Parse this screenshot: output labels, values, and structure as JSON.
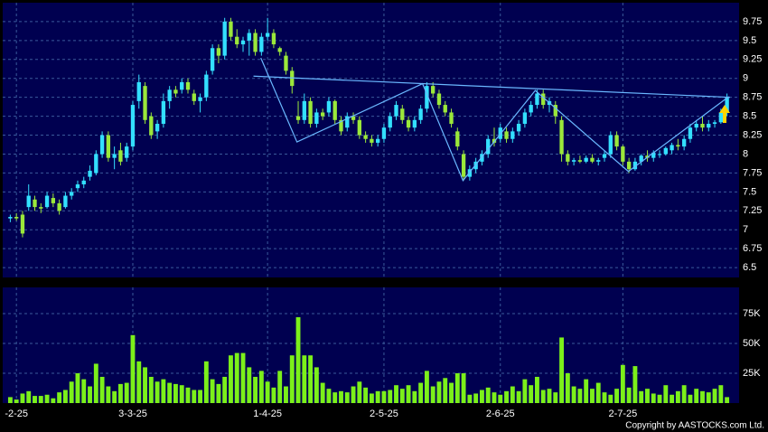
{
  "chart_data": {
    "type": "candlestick",
    "categories": [
      null,
      "-2-25",
      null,
      null,
      null,
      null,
      null,
      null,
      null,
      null,
      null,
      null,
      null,
      null,
      null,
      null,
      null,
      null,
      null,
      null,
      "3-3-25",
      null,
      null,
      null,
      null,
      null,
      null,
      null,
      null,
      null,
      null,
      null,
      null,
      null,
      null,
      null,
      null,
      null,
      null,
      null,
      null,
      null,
      "1-4-25",
      null,
      null,
      null,
      null,
      null,
      null,
      null,
      null,
      null,
      null,
      null,
      null,
      null,
      null,
      null,
      null,
      null,
      null,
      "2-5-25",
      null,
      null,
      null,
      null,
      null,
      null,
      null,
      null,
      null,
      null,
      null,
      null,
      null,
      null,
      null,
      null,
      null,
      null,
      "2-6-25",
      null,
      null,
      null,
      null,
      null,
      null,
      null,
      null,
      null,
      null,
      null,
      null,
      null,
      null,
      null,
      null,
      null,
      null,
      null,
      "2-7-25",
      null,
      null,
      null,
      null,
      null,
      null,
      null,
      null,
      null,
      null,
      null,
      null,
      null,
      null,
      null,
      null,
      null
    ],
    "open": [
      7.15,
      7.17,
      7.2,
      7.3,
      7.4,
      7.3,
      7.3,
      7.42,
      7.35,
      7.3,
      7.45,
      7.55,
      7.6,
      7.7,
      7.75,
      8.0,
      8.25,
      7.95,
      8.05,
      7.95,
      8.1,
      8.7,
      8.9,
      8.5,
      8.3,
      8.4,
      8.7,
      8.85,
      8.85,
      8.95,
      8.8,
      8.7,
      8.75,
      9.1,
      9.4,
      9.3,
      9.75,
      9.55,
      9.45,
      9.5,
      9.6,
      9.35,
      9.55,
      9.6,
      9.4,
      9.3,
      9.1,
      8.5,
      8.45,
      8.7,
      8.4,
      8.55,
      8.55,
      8.7,
      8.45,
      8.35,
      8.5,
      8.45,
      8.25,
      8.2,
      8.15,
      8.2,
      8.35,
      8.5,
      8.6,
      8.45,
      8.35,
      8.45,
      8.6,
      8.9,
      8.8,
      8.65,
      8.55,
      8.3,
      8.0,
      7.7,
      7.8,
      7.9,
      8.0,
      8.2,
      8.2,
      8.3,
      8.2,
      8.3,
      8.4,
      8.55,
      8.65,
      8.8,
      8.65,
      8.65,
      8.45,
      8.0,
      7.9,
      7.92,
      7.9,
      7.95,
      7.9,
      7.95,
      8.0,
      8.25,
      8.1,
      7.9,
      7.8,
      7.9,
      7.98,
      7.95,
      8.0,
      8.0,
      8.05,
      8.12,
      8.1,
      8.2,
      8.35,
      8.4,
      8.35,
      8.4,
      8.42,
      8.55
    ],
    "high": [
      7.2,
      7.22,
      7.25,
      7.6,
      7.45,
      7.35,
      7.5,
      7.48,
      7.4,
      7.5,
      7.55,
      7.65,
      7.7,
      7.85,
      8.05,
      8.3,
      8.3,
      8.1,
      8.15,
      8.15,
      8.7,
      9.05,
      8.95,
      8.55,
      8.45,
      8.8,
      8.9,
      8.9,
      9.0,
      9.0,
      8.85,
      8.8,
      9.1,
      9.45,
      9.45,
      9.8,
      9.8,
      9.65,
      9.55,
      9.65,
      9.65,
      9.6,
      9.8,
      9.65,
      9.42,
      9.35,
      9.15,
      8.7,
      8.8,
      8.75,
      8.6,
      8.6,
      8.75,
      8.72,
      8.5,
      8.55,
      8.55,
      8.5,
      8.3,
      8.25,
      8.25,
      8.4,
      8.55,
      8.7,
      8.65,
      8.5,
      8.5,
      8.65,
      8.95,
      8.95,
      8.85,
      8.7,
      8.6,
      8.35,
      8.05,
      7.85,
      7.95,
      8.05,
      8.25,
      8.35,
      8.4,
      8.35,
      8.35,
      8.45,
      8.6,
      8.7,
      8.85,
      8.85,
      8.75,
      8.7,
      8.5,
      8.05,
      7.95,
      7.98,
      7.98,
      8.0,
      7.95,
      8.05,
      8.3,
      8.3,
      8.12,
      7.95,
      7.95,
      8.0,
      8.05,
      8.05,
      8.05,
      8.1,
      8.15,
      8.2,
      8.25,
      8.4,
      8.45,
      8.5,
      8.45,
      8.45,
      8.6,
      8.8
    ],
    "low": [
      7.1,
      7.12,
      6.9,
      7.25,
      7.25,
      7.22,
      7.28,
      7.3,
      7.2,
      7.28,
      7.4,
      7.5,
      7.55,
      7.65,
      7.72,
      7.95,
      7.9,
      7.8,
      7.85,
      7.9,
      8.05,
      8.6,
      8.4,
      8.2,
      8.2,
      8.35,
      8.6,
      8.75,
      8.8,
      8.8,
      8.65,
      8.55,
      8.7,
      9.05,
      9.2,
      9.25,
      9.5,
      9.4,
      9.35,
      9.3,
      9.3,
      9.3,
      9.5,
      9.4,
      9.3,
      9.05,
      8.8,
      8.4,
      8.4,
      8.35,
      8.35,
      8.45,
      8.5,
      8.4,
      8.25,
      8.3,
      8.4,
      8.2,
      8.15,
      8.1,
      8.1,
      8.15,
      8.3,
      8.45,
      8.4,
      8.3,
      8.3,
      8.4,
      8.55,
      8.75,
      8.6,
      8.5,
      8.35,
      8.05,
      7.65,
      7.65,
      7.75,
      7.85,
      7.95,
      8.1,
      8.15,
      8.15,
      8.15,
      8.25,
      8.35,
      8.5,
      8.6,
      8.6,
      8.55,
      8.4,
      7.9,
      7.85,
      7.85,
      7.88,
      7.88,
      7.88,
      7.85,
      7.9,
      7.95,
      8.05,
      7.85,
      7.75,
      7.78,
      7.85,
      7.9,
      7.9,
      7.95,
      7.98,
      8.0,
      8.05,
      8.05,
      8.15,
      8.3,
      8.3,
      8.3,
      8.35,
      8.4,
      8.5
    ],
    "close": [
      7.17,
      7.15,
      6.95,
      7.45,
      7.3,
      7.28,
      7.45,
      7.35,
      7.25,
      7.45,
      7.5,
      7.6,
      7.65,
      7.78,
      8.0,
      8.25,
      7.95,
      8.0,
      7.9,
      8.1,
      8.65,
      8.95,
      8.45,
      8.25,
      8.4,
      8.7,
      8.85,
      8.8,
      8.95,
      8.85,
      8.7,
      8.75,
      9.05,
      9.4,
      9.3,
      9.75,
      9.55,
      9.45,
      9.5,
      9.6,
      9.35,
      9.55,
      9.6,
      9.45,
      9.35,
      9.1,
      8.9,
      8.45,
      8.7,
      8.4,
      8.55,
      8.5,
      8.7,
      8.45,
      8.3,
      8.5,
      8.45,
      8.25,
      8.2,
      8.15,
      8.2,
      8.35,
      8.5,
      8.65,
      8.45,
      8.35,
      8.45,
      8.6,
      8.9,
      8.8,
      8.65,
      8.55,
      8.4,
      8.1,
      7.7,
      7.8,
      7.9,
      8.0,
      8.2,
      8.15,
      8.35,
      8.2,
      8.3,
      8.4,
      8.55,
      8.65,
      8.8,
      8.65,
      8.7,
      8.5,
      8.0,
      7.9,
      7.92,
      7.9,
      7.95,
      7.9,
      7.92,
      8.0,
      8.25,
      8.1,
      7.9,
      7.8,
      7.9,
      7.98,
      7.95,
      8.02,
      8.0,
      8.08,
      8.12,
      8.1,
      8.2,
      8.35,
      8.4,
      8.35,
      8.4,
      8.42,
      8.55,
      8.75
    ],
    "up_color": "#33e0ff",
    "down_color": "#9be83a",
    "ylim": [
      6.37,
      10.0
    ],
    "yticks": [
      6.5,
      6.75,
      7,
      7.25,
      7.5,
      7.75,
      8,
      8.25,
      8.5,
      8.75,
      9,
      9.25,
      9.5,
      9.75
    ],
    "grid": true,
    "overlay_lines": [
      {
        "color": "#6ab8ff",
        "x": [
          39.7,
          117.5
        ],
        "y": [
          9.03,
          8.75
        ]
      },
      {
        "color": "#6ab8ff",
        "x": [
          40.9,
          46.8,
          67.3,
          73.9,
          85.7,
          100.9,
          117.3
        ],
        "y": [
          9.27,
          8.16,
          8.93,
          7.65,
          8.84,
          7.77,
          8.76
        ]
      }
    ],
    "volume": {
      "type": "bar",
      "color": "#7cf01a",
      "values": [
        5000,
        3000,
        8000,
        10000,
        6000,
        6000,
        7000,
        4000,
        9000,
        11000,
        18000,
        25000,
        20000,
        14000,
        33000,
        22000,
        14000,
        10000,
        16000,
        17000,
        57000,
        35000,
        30000,
        22000,
        18000,
        20000,
        17000,
        16000,
        15000,
        13000,
        11000,
        11000,
        35000,
        20000,
        16000,
        22000,
        40000,
        42000,
        42000,
        30000,
        22000,
        27000,
        18000,
        13000,
        27000,
        14000,
        40000,
        72000,
        40000,
        40000,
        30000,
        17000,
        12000,
        9000,
        10000,
        9000,
        14000,
        18000,
        13000,
        8000,
        10000,
        10000,
        11000,
        15000,
        12000,
        15000,
        10000,
        17000,
        27000,
        14000,
        18000,
        21000,
        17000,
        25000,
        25000,
        7000,
        8000,
        11000,
        13000,
        9000,
        7000,
        10000,
        14000,
        10000,
        20000,
        15000,
        22000,
        11000,
        12000,
        9000,
        55000,
        25000,
        14000,
        12000,
        20000,
        12000,
        17000,
        9000,
        7000,
        12000,
        32000,
        13000,
        31000,
        10000,
        12000,
        8000,
        7000,
        15000,
        7000,
        10000,
        15000,
        7000,
        12000,
        10000,
        9000,
        12000,
        15000,
        5000
      ],
      "ylim": [
        0,
        97000
      ],
      "yticks": [
        {
          "value": 25000,
          "label": "25K"
        },
        {
          "value": 50000,
          "label": "50K"
        },
        {
          "value": 75000,
          "label": "75K"
        }
      ]
    }
  },
  "copyright": "Copyright by AASTOCKS.com Ltd."
}
